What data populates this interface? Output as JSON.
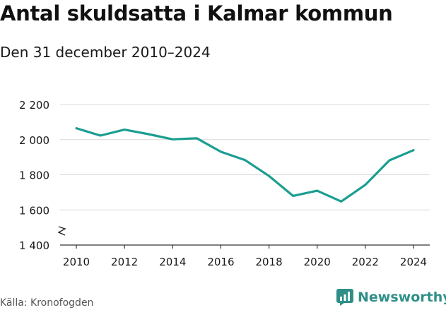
{
  "header": {
    "title": "Antal skuldsatta i Kalmar kommun",
    "subtitle": "Den 31 december 2010–2024"
  },
  "footer": {
    "source": "Källa: Kronofogden",
    "brand": "Newsworthy"
  },
  "colors": {
    "line": "#1a9e90",
    "grid": "#d9d9d9",
    "brand": "#2f8f88"
  },
  "chart_data": {
    "type": "line",
    "title": "Antal skuldsatta i Kalmar kommun",
    "subtitle": "Den 31 december 2010–2024",
    "x": [
      2010,
      2011,
      2012,
      2013,
      2014,
      2015,
      2016,
      2017,
      2018,
      2019,
      2020,
      2021,
      2022,
      2023,
      2024
    ],
    "series": [
      {
        "values": [
          2065,
          2023,
          2057,
          2031,
          2002,
          2008,
          1931,
          1884,
          1793,
          1680,
          1709,
          1648,
          1743,
          1882,
          1940
        ]
      }
    ],
    "x_ticks": [
      2010,
      2012,
      2014,
      2016,
      2018,
      2020,
      2022,
      2024
    ],
    "x_tick_labels": [
      "2010",
      "2012",
      "2014",
      "2016",
      "2018",
      "2020",
      "2022",
      "2024"
    ],
    "y_ticks": [
      1400,
      1600,
      1800,
      2000,
      2200
    ],
    "y_tick_labels": [
      "1 400",
      "1 600",
      "1 800",
      "2 000",
      "2 200"
    ],
    "ylim": [
      1400,
      2200
    ],
    "xlim": [
      2010,
      2024
    ],
    "y_axis_break": true,
    "grid": true,
    "xlabel": "",
    "ylabel": ""
  }
}
